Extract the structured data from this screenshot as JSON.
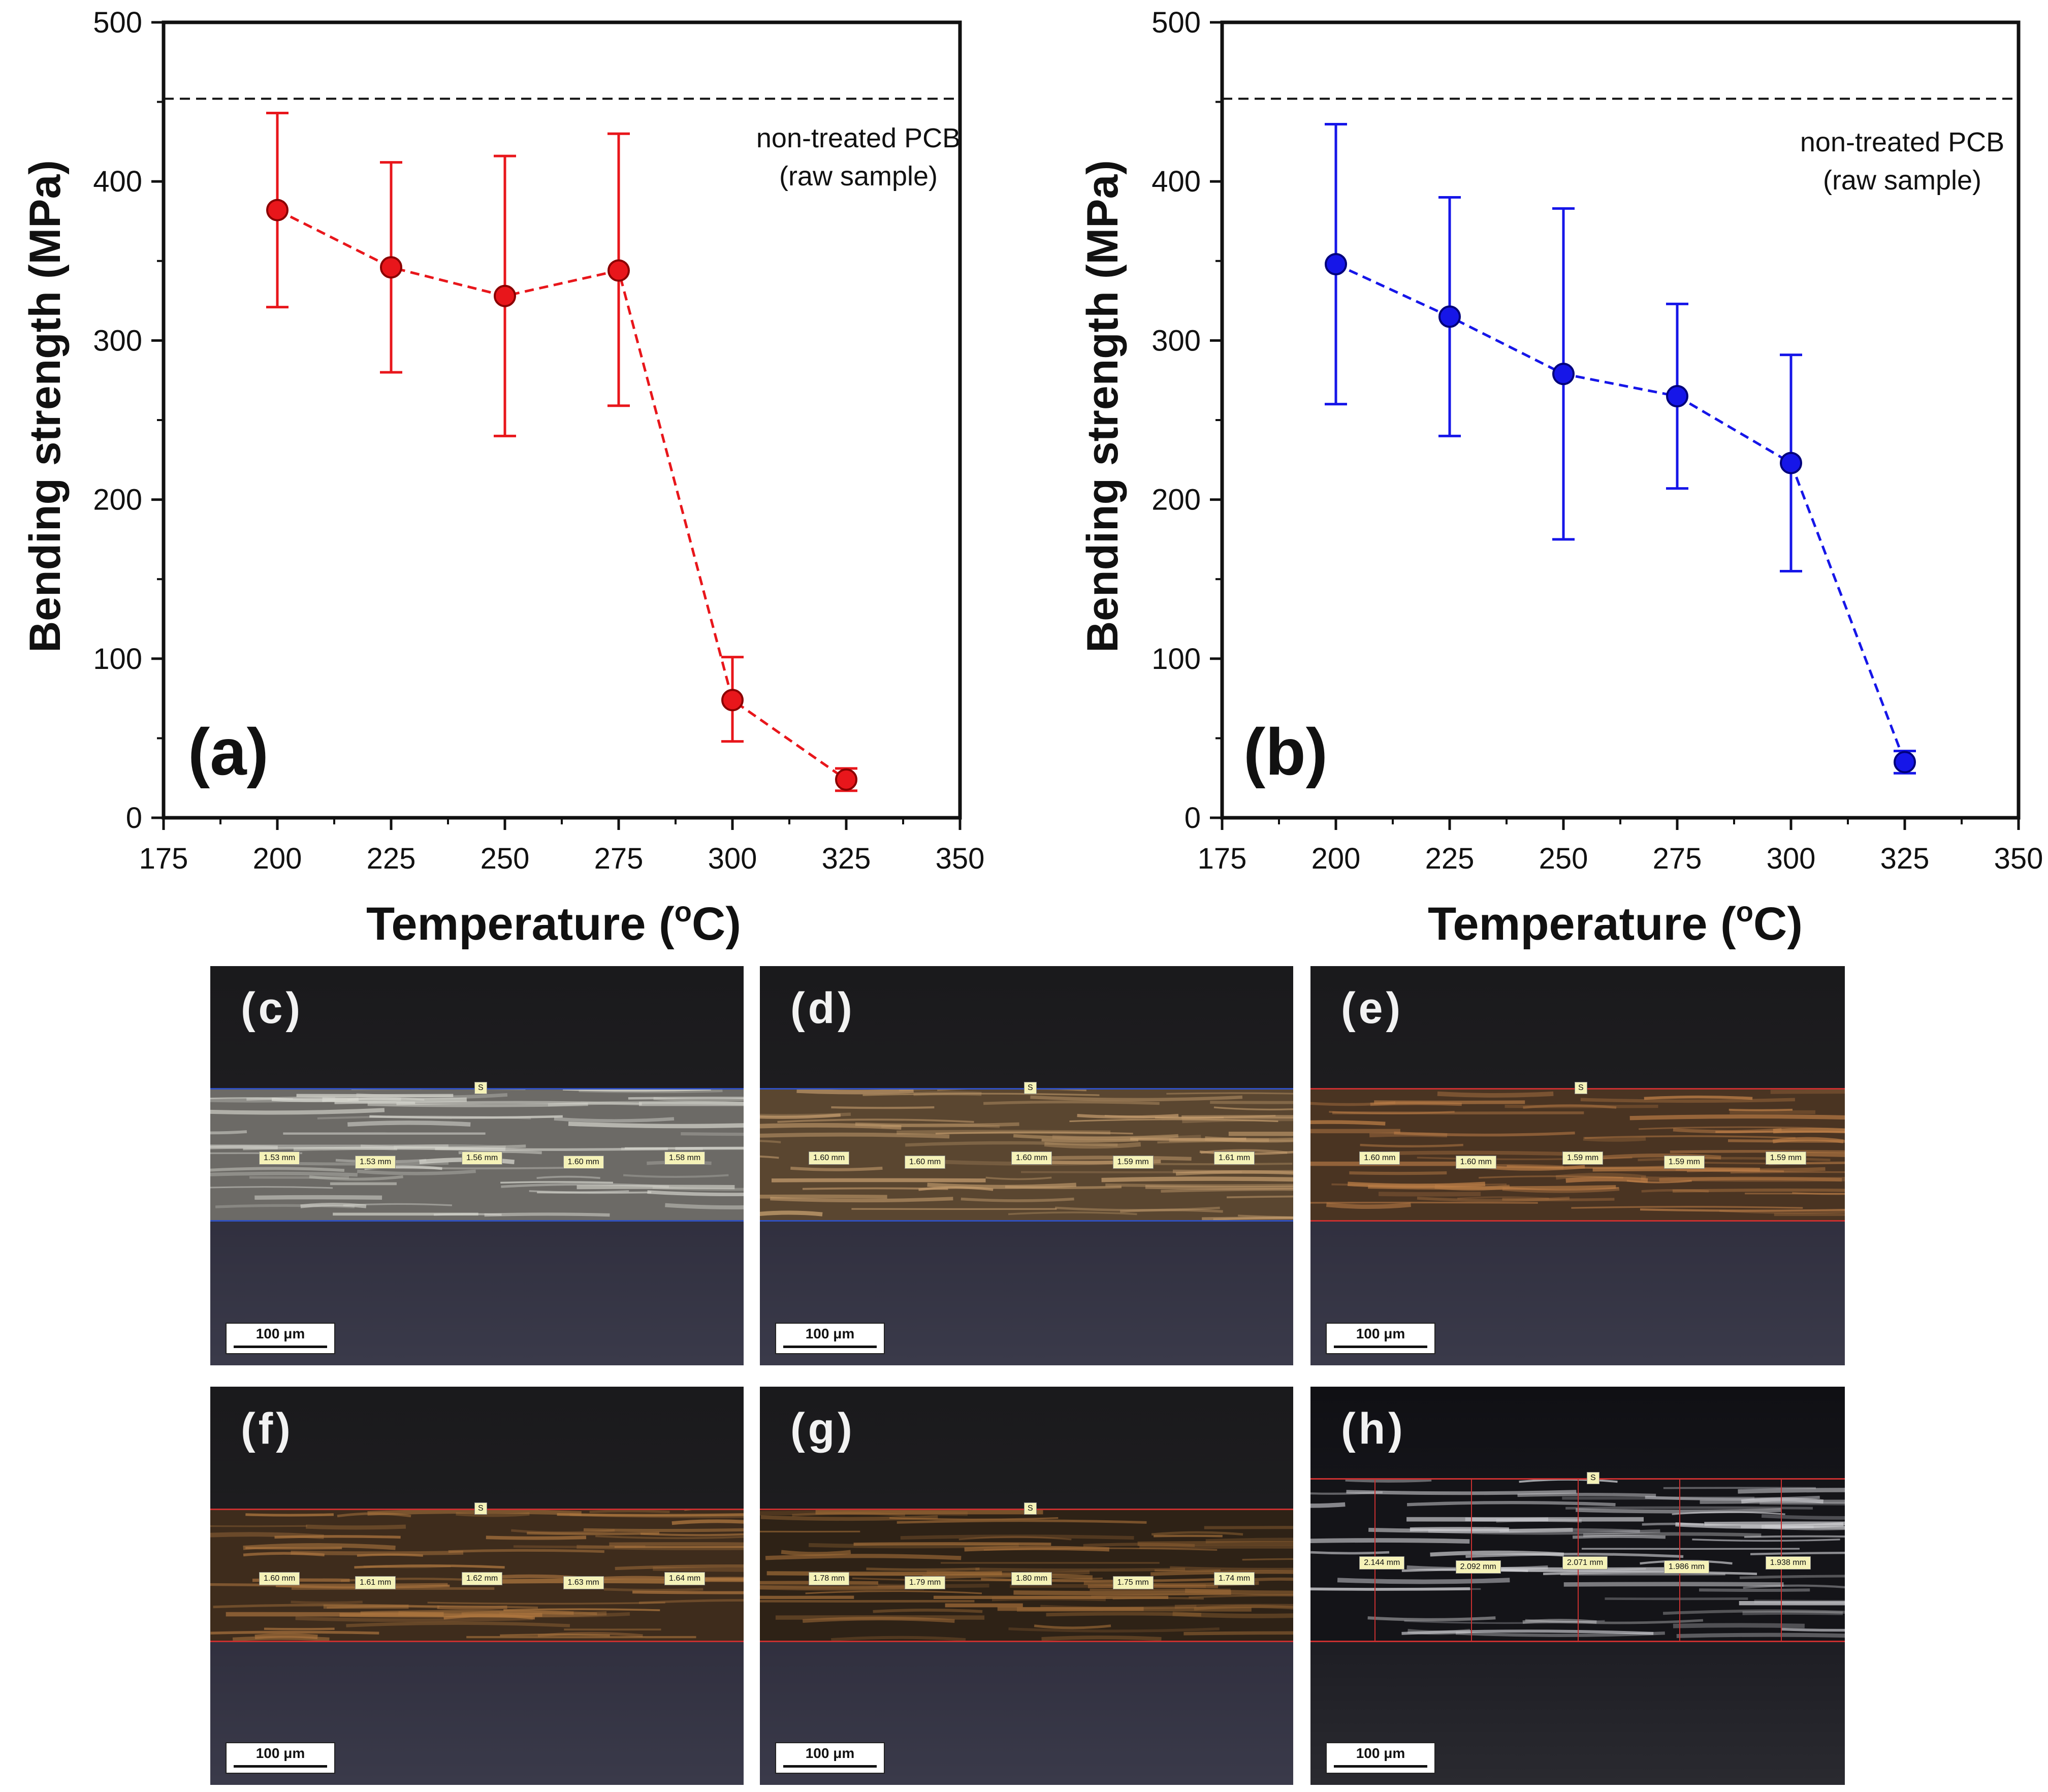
{
  "chart_data": [
    {
      "id": "a",
      "type": "scatter",
      "panel_label": "(a)",
      "x": [
        200,
        225,
        250,
        275,
        300,
        325
      ],
      "y": [
        382,
        346,
        328,
        344,
        74,
        24
      ],
      "err_low": [
        321,
        280,
        240,
        259,
        48,
        17
      ],
      "err_high": [
        443,
        412,
        416,
        430,
        101,
        31
      ],
      "xlim": [
        175,
        350
      ],
      "ylim": [
        0,
        500
      ],
      "xticks": [
        175,
        200,
        225,
        250,
        275,
        300,
        325,
        350
      ],
      "yticks": [
        0,
        100,
        200,
        300,
        400,
        500
      ],
      "xlabel": "Temperature (",
      "xlabel_sup": "o",
      "xlabel_end": "C)",
      "ylabel": "Bending strength (MPa)",
      "reference_line": {
        "y": 452,
        "label_line1": "non-treated PCB",
        "label_line2": "(raw sample)"
      },
      "color": "#e8161b",
      "edge_color": "#8a0000"
    },
    {
      "id": "b",
      "type": "scatter",
      "panel_label": "(b)",
      "x": [
        200,
        225,
        250,
        275,
        300,
        325
      ],
      "y": [
        348,
        315,
        279,
        265,
        223,
        35
      ],
      "err_low": [
        260,
        240,
        175,
        207,
        155,
        28
      ],
      "err_high": [
        436,
        390,
        383,
        323,
        291,
        42
      ],
      "xlim": [
        175,
        350
      ],
      "ylim": [
        0,
        500
      ],
      "xticks": [
        175,
        200,
        225,
        250,
        275,
        300,
        325,
        350
      ],
      "yticks": [
        0,
        100,
        200,
        300,
        400,
        500
      ],
      "xlabel": "Temperature (",
      "xlabel_sup": "o",
      "xlabel_end": "C)",
      "ylabel": "Bending strength (MPa)",
      "reference_line": {
        "y": 452,
        "label_line1": "non-treated PCB",
        "label_line2": "(raw sample)"
      },
      "color": "#1616e8",
      "edge_color": "#00007a"
    }
  ],
  "micrographs": [
    {
      "id": "c",
      "label": "(c)",
      "marker": "S",
      "scale": "100 μm",
      "measurements": [
        "1.53 mm",
        "1.53 mm",
        "1.56 mm",
        "1.60 mm",
        "1.58 mm"
      ],
      "fiber_color": "#d8d8d0",
      "base_color": "#6c6a66",
      "edge_color": "#3050c0"
    },
    {
      "id": "d",
      "label": "(d)",
      "marker": "S",
      "scale": "100 μm",
      "measurements": [
        "1.60 mm",
        "1.60 mm",
        "1.60 mm",
        "1.59 mm",
        "1.61 mm"
      ],
      "fiber_color": "#c8a070",
      "base_color": "#5a4630",
      "edge_color": "#3050c0"
    },
    {
      "id": "e",
      "label": "(e)",
      "marker": "S",
      "scale": "100 μm",
      "measurements": [
        "1.60 mm",
        "1.60 mm",
        "1.59 mm",
        "1.59 mm",
        "1.59 mm"
      ],
      "fiber_color": "#c08048",
      "base_color": "#4a3422",
      "edge_color": "#c83030"
    },
    {
      "id": "f",
      "label": "(f)",
      "marker": "S",
      "scale": "100 μm",
      "measurements": [
        "1.60 mm",
        "1.61 mm",
        "1.62 mm",
        "1.63 mm",
        "1.64 mm"
      ],
      "fiber_color": "#b07840",
      "base_color": "#3e2c1c",
      "edge_color": "#c83030"
    },
    {
      "id": "g",
      "label": "(g)",
      "marker": "S",
      "scale": "100 μm",
      "measurements": [
        "1.78 mm",
        "1.79 mm",
        "1.80 mm",
        "1.75 mm",
        "1.74 mm"
      ],
      "fiber_color": "#a06c38",
      "base_color": "#2e2216",
      "edge_color": "#c83030"
    },
    {
      "id": "h",
      "label": "(h)",
      "marker": "S",
      "scale": "100 μm",
      "measurements": [
        "2.144 mm",
        "2.092 mm",
        "2.071 mm",
        "1.986 mm",
        "1.938 mm"
      ],
      "fiber_color": "#d0d0d4",
      "base_color": "#141418",
      "edge_color": "#c83030"
    }
  ]
}
